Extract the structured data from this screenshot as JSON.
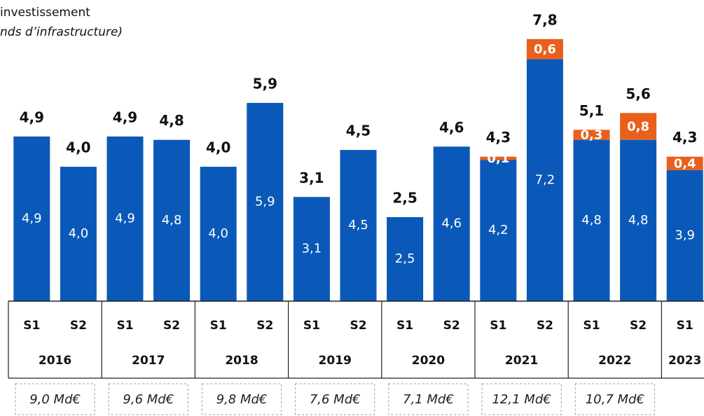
{
  "chart_data": {
    "type": "stacked_bar",
    "title_lines": [
      "investissement",
      "nds d’infrastructure)"
    ],
    "categories": [
      "S1",
      "S2",
      "S1",
      "S2",
      "S1",
      "S2",
      "S1",
      "S2",
      "S1",
      "S2",
      "S1",
      "S2",
      "S1",
      "S2",
      "S1"
    ],
    "groups": [
      {
        "name": "2016",
        "annotation": "9,0 Md€"
      },
      {
        "name": "2017",
        "annotation": "9,6 Md€"
      },
      {
        "name": "2018",
        "annotation": "9,8 Md€"
      },
      {
        "name": "2019",
        "annotation": "7,6 Md€"
      },
      {
        "name": "2020",
        "annotation": "7,1 Md€"
      },
      {
        "name": "2021",
        "annotation": "12,1 Md€"
      },
      {
        "name": "2022",
        "annotation": "10,7 Md€"
      },
      {
        "name": "2023"
      }
    ],
    "series": [
      {
        "color": "#0a59b8",
        "values": [
          4.9,
          4.0,
          4.9,
          4.8,
          4.0,
          5.9,
          3.1,
          4.5,
          2.5,
          4.6,
          4.2,
          7.2,
          4.8,
          4.8,
          3.9
        ],
        "value_labels": [
          "4,9",
          "4,0",
          "4,9",
          "4,8",
          "4,0",
          "5,9",
          "3,1",
          "4,5",
          "2,5",
          "4,6",
          "4,2",
          "7,2",
          "4,8",
          "4,8",
          "3,9"
        ]
      },
      {
        "color": "#e8601c",
        "values": [
          null,
          null,
          null,
          null,
          null,
          null,
          null,
          null,
          null,
          null,
          0.1,
          0.6,
          0.3,
          0.8,
          0.4
        ],
        "value_labels": [
          null,
          null,
          null,
          null,
          null,
          null,
          null,
          null,
          null,
          null,
          "0,1",
          "0,6",
          "0,3",
          "0,8",
          "0,4"
        ]
      }
    ],
    "totals": [
      4.9,
      4.0,
      4.9,
      4.8,
      4.0,
      5.9,
      3.1,
      4.5,
      2.5,
      4.6,
      4.3,
      7.8,
      5.1,
      5.6,
      4.3
    ],
    "total_labels": [
      "4,9",
      "4,0",
      "4,9",
      "4,8",
      "4,0",
      "5,9",
      "3,1",
      "4,5",
      "2,5",
      "4,6",
      "4,3",
      "7,8",
      "5,1",
      "5,6",
      "4,3"
    ],
    "ylim": [
      0,
      8.9
    ]
  }
}
